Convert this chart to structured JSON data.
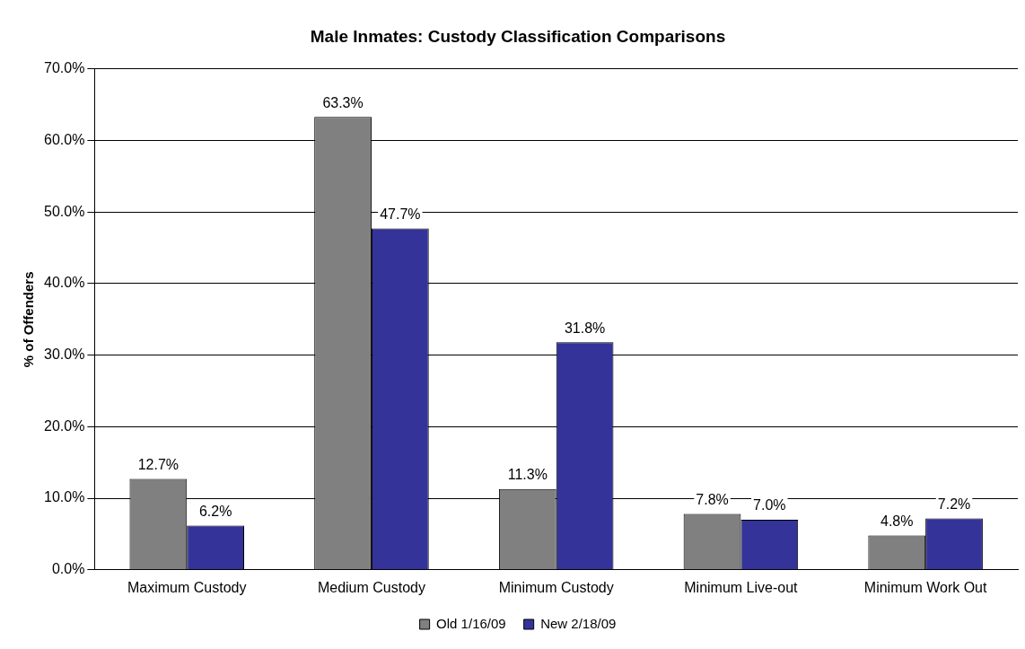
{
  "chart_data": {
    "type": "bar",
    "title": "Male Inmates: Custody Classification Comparisons",
    "ylabel": "% of Offenders",
    "categories": [
      "Maximum Custody",
      "Medium Custody",
      "Minimum Custody",
      "Minimum Live-out",
      "Minimum Work Out"
    ],
    "series": [
      {
        "name": "Old 1/16/09",
        "color": "#808080",
        "values": [
          12.7,
          63.3,
          11.3,
          7.8,
          4.8
        ],
        "value_labels": [
          "12.7%",
          "63.3%",
          "11.3%",
          "7.8%",
          "4.8%"
        ]
      },
      {
        "name": "New 2/18/09",
        "color": "#333399",
        "values": [
          6.2,
          47.7,
          31.8,
          7.0,
          7.2
        ],
        "value_labels": [
          "6.2%",
          "47.7%",
          "31.8%",
          "7.0%",
          "7.2%"
        ]
      }
    ],
    "ylim": [
      0,
      70
    ],
    "yticks": [
      {
        "value": 0,
        "label": "0.0%"
      },
      {
        "value": 10,
        "label": "10.0%"
      },
      {
        "value": 20,
        "label": "20.0%"
      },
      {
        "value": 30,
        "label": "30.0%"
      },
      {
        "value": 40,
        "label": "40.0%"
      },
      {
        "value": 50,
        "label": "50.0%"
      },
      {
        "value": 60,
        "label": "60.0%"
      },
      {
        "value": 70,
        "label": "70.0%"
      }
    ],
    "grid": "y",
    "legend": "bottom"
  }
}
